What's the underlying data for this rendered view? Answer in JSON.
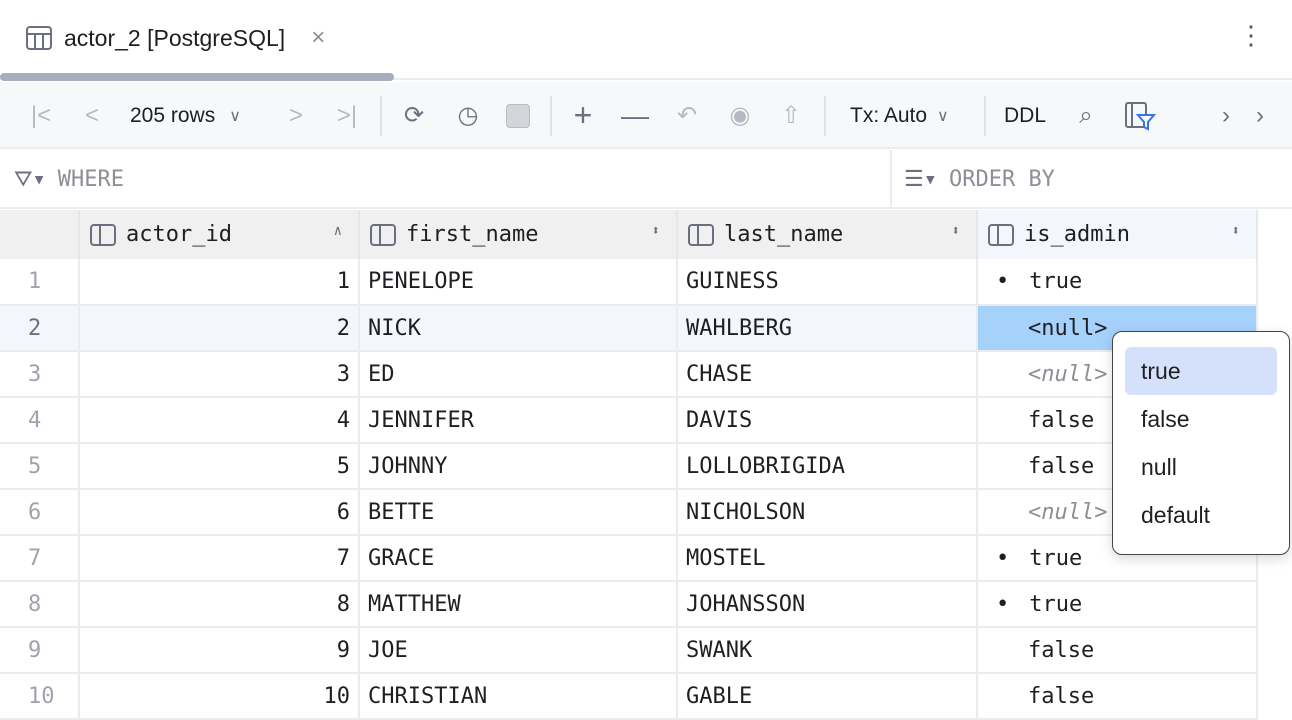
{
  "tab": {
    "title": "actor_2 [PostgreSQL]",
    "icon": "table-icon",
    "close": "×"
  },
  "toolbar": {
    "rows": "205 rows",
    "tx": "Tx: Auto",
    "ddl": "DDL"
  },
  "filter": {
    "where": "WHERE",
    "order_by": "ORDER BY"
  },
  "columns": [
    "actor_id",
    "first_name",
    "last_name",
    "is_admin"
  ],
  "rows": [
    {
      "n": "1",
      "id": "1",
      "first": "PENELOPE",
      "last": "GUINESS",
      "admin": "true"
    },
    {
      "n": "2",
      "id": "2",
      "first": "NICK",
      "last": "WAHLBERG",
      "admin": "<null>"
    },
    {
      "n": "3",
      "id": "3",
      "first": "ED",
      "last": "CHASE",
      "admin": "<null>"
    },
    {
      "n": "4",
      "id": "4",
      "first": "JENNIFER",
      "last": "DAVIS",
      "admin": "false"
    },
    {
      "n": "5",
      "id": "5",
      "first": "JOHNNY",
      "last": "LOLLOBRIGIDA",
      "admin": "false"
    },
    {
      "n": "6",
      "id": "6",
      "first": "BETTE",
      "last": "NICHOLSON",
      "admin": "<null>"
    },
    {
      "n": "7",
      "id": "7",
      "first": "GRACE",
      "last": "MOSTEL",
      "admin": "true"
    },
    {
      "n": "8",
      "id": "8",
      "first": "MATTHEW",
      "last": "JOHANSSON",
      "admin": "true"
    },
    {
      "n": "9",
      "id": "9",
      "first": "JOE",
      "last": "SWANK",
      "admin": "false"
    },
    {
      "n": "10",
      "id": "10",
      "first": "CHRISTIAN",
      "last": "GABLE",
      "admin": "false"
    }
  ],
  "popup": {
    "options": [
      "true",
      "false",
      "null",
      "default"
    ],
    "highlighted": "true"
  },
  "colors": {
    "selected_cell": "#a6d1fa",
    "highlight": "#d5e1fb"
  }
}
